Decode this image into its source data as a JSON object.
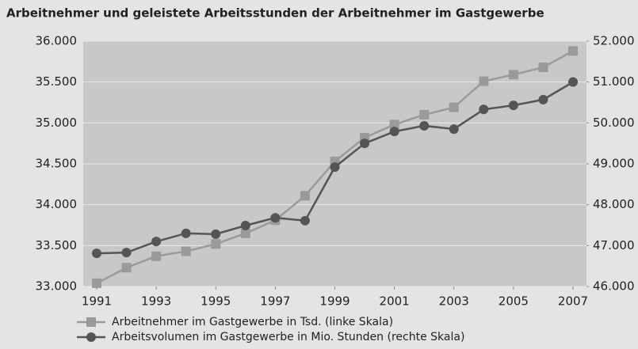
{
  "chart_data": {
    "type": "line",
    "title": "Arbeitnehmer und geleistete Arbeitsstunden der Arbeitnehmer im Gastgewerbe",
    "x": [
      1991,
      1992,
      1993,
      1994,
      1995,
      1996,
      1997,
      1998,
      1999,
      2000,
      2001,
      2002,
      2003,
      2004,
      2005,
      2006,
      2007
    ],
    "xlim": [
      1991,
      2007
    ],
    "xticks": [
      1991,
      1993,
      1995,
      1997,
      1999,
      2001,
      2003,
      2005,
      2007
    ],
    "ylim": [
      33000,
      36000
    ],
    "yticks": [
      {
        "value": 33000,
        "label": "33.000"
      },
      {
        "value": 33500,
        "label": "33.500"
      },
      {
        "value": 34000,
        "label": "34.000"
      },
      {
        "value": 34500,
        "label": "34.500"
      },
      {
        "value": 35000,
        "label": "35.000"
      },
      {
        "value": 35500,
        "label": "35.500"
      },
      {
        "value": 36000,
        "label": "36.000"
      }
    ],
    "y2lim": [
      46000,
      52000
    ],
    "y2ticks": [
      {
        "value": 46000,
        "label": "46.000"
      },
      {
        "value": 47000,
        "label": "47.000"
      },
      {
        "value": 48000,
        "label": "48.000"
      },
      {
        "value": 49000,
        "label": "49.000"
      },
      {
        "value": 50000,
        "label": "50.000"
      },
      {
        "value": 51000,
        "label": "51.000"
      },
      {
        "value": 52000,
        "label": "52.000"
      }
    ],
    "grid": true,
    "series": [
      {
        "name": "Arbeitnehmer im Gastgewerbe in Tsd. (linke Skala)",
        "color": "#9a9a9a",
        "marker": "square",
        "values": [
          33040,
          33230,
          33370,
          33430,
          33520,
          33650,
          33810,
          34110,
          34530,
          34820,
          34980,
          35100,
          35190,
          35510,
          35590,
          35680,
          35880
        ]
      },
      {
        "name": "Arbeitsvolumen im Gastgewerbe in Mio. Stunden (rechte Skala)",
        "color": "#555555",
        "marker": "circle",
        "axis": "y2",
        "values": [
          46810,
          46830,
          47100,
          47300,
          47280,
          47490,
          47680,
          47610,
          48920,
          49500,
          49790,
          49930,
          49850,
          50330,
          50430,
          50570,
          51000
        ]
      }
    ]
  }
}
